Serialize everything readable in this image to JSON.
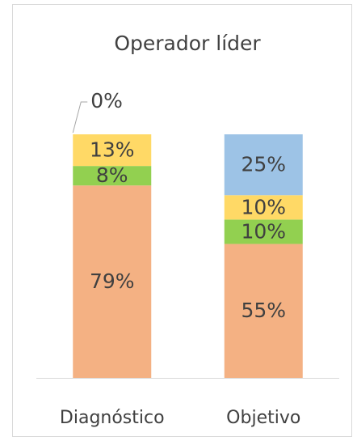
{
  "chart_data": {
    "type": "stacked_bar",
    "title": "Operador líder",
    "categories": [
      "Diagnóstico",
      "Objetivo"
    ],
    "series": [
      {
        "color": "#f4b183",
        "values": [
          79,
          55
        ],
        "value_labels": [
          "79%",
          "55%"
        ]
      },
      {
        "color": "#92d050",
        "values": [
          8,
          10
        ],
        "value_labels": [
          "8%",
          "10%"
        ]
      },
      {
        "color": "#ffd966",
        "values": [
          13,
          10
        ],
        "value_labels": [
          "13%",
          "10%"
        ]
      },
      {
        "color": "#9dc3e6",
        "values": [
          0,
          25
        ],
        "value_labels": [
          "0%",
          "25%"
        ]
      }
    ],
    "ylim": [
      0,
      100
    ]
  }
}
